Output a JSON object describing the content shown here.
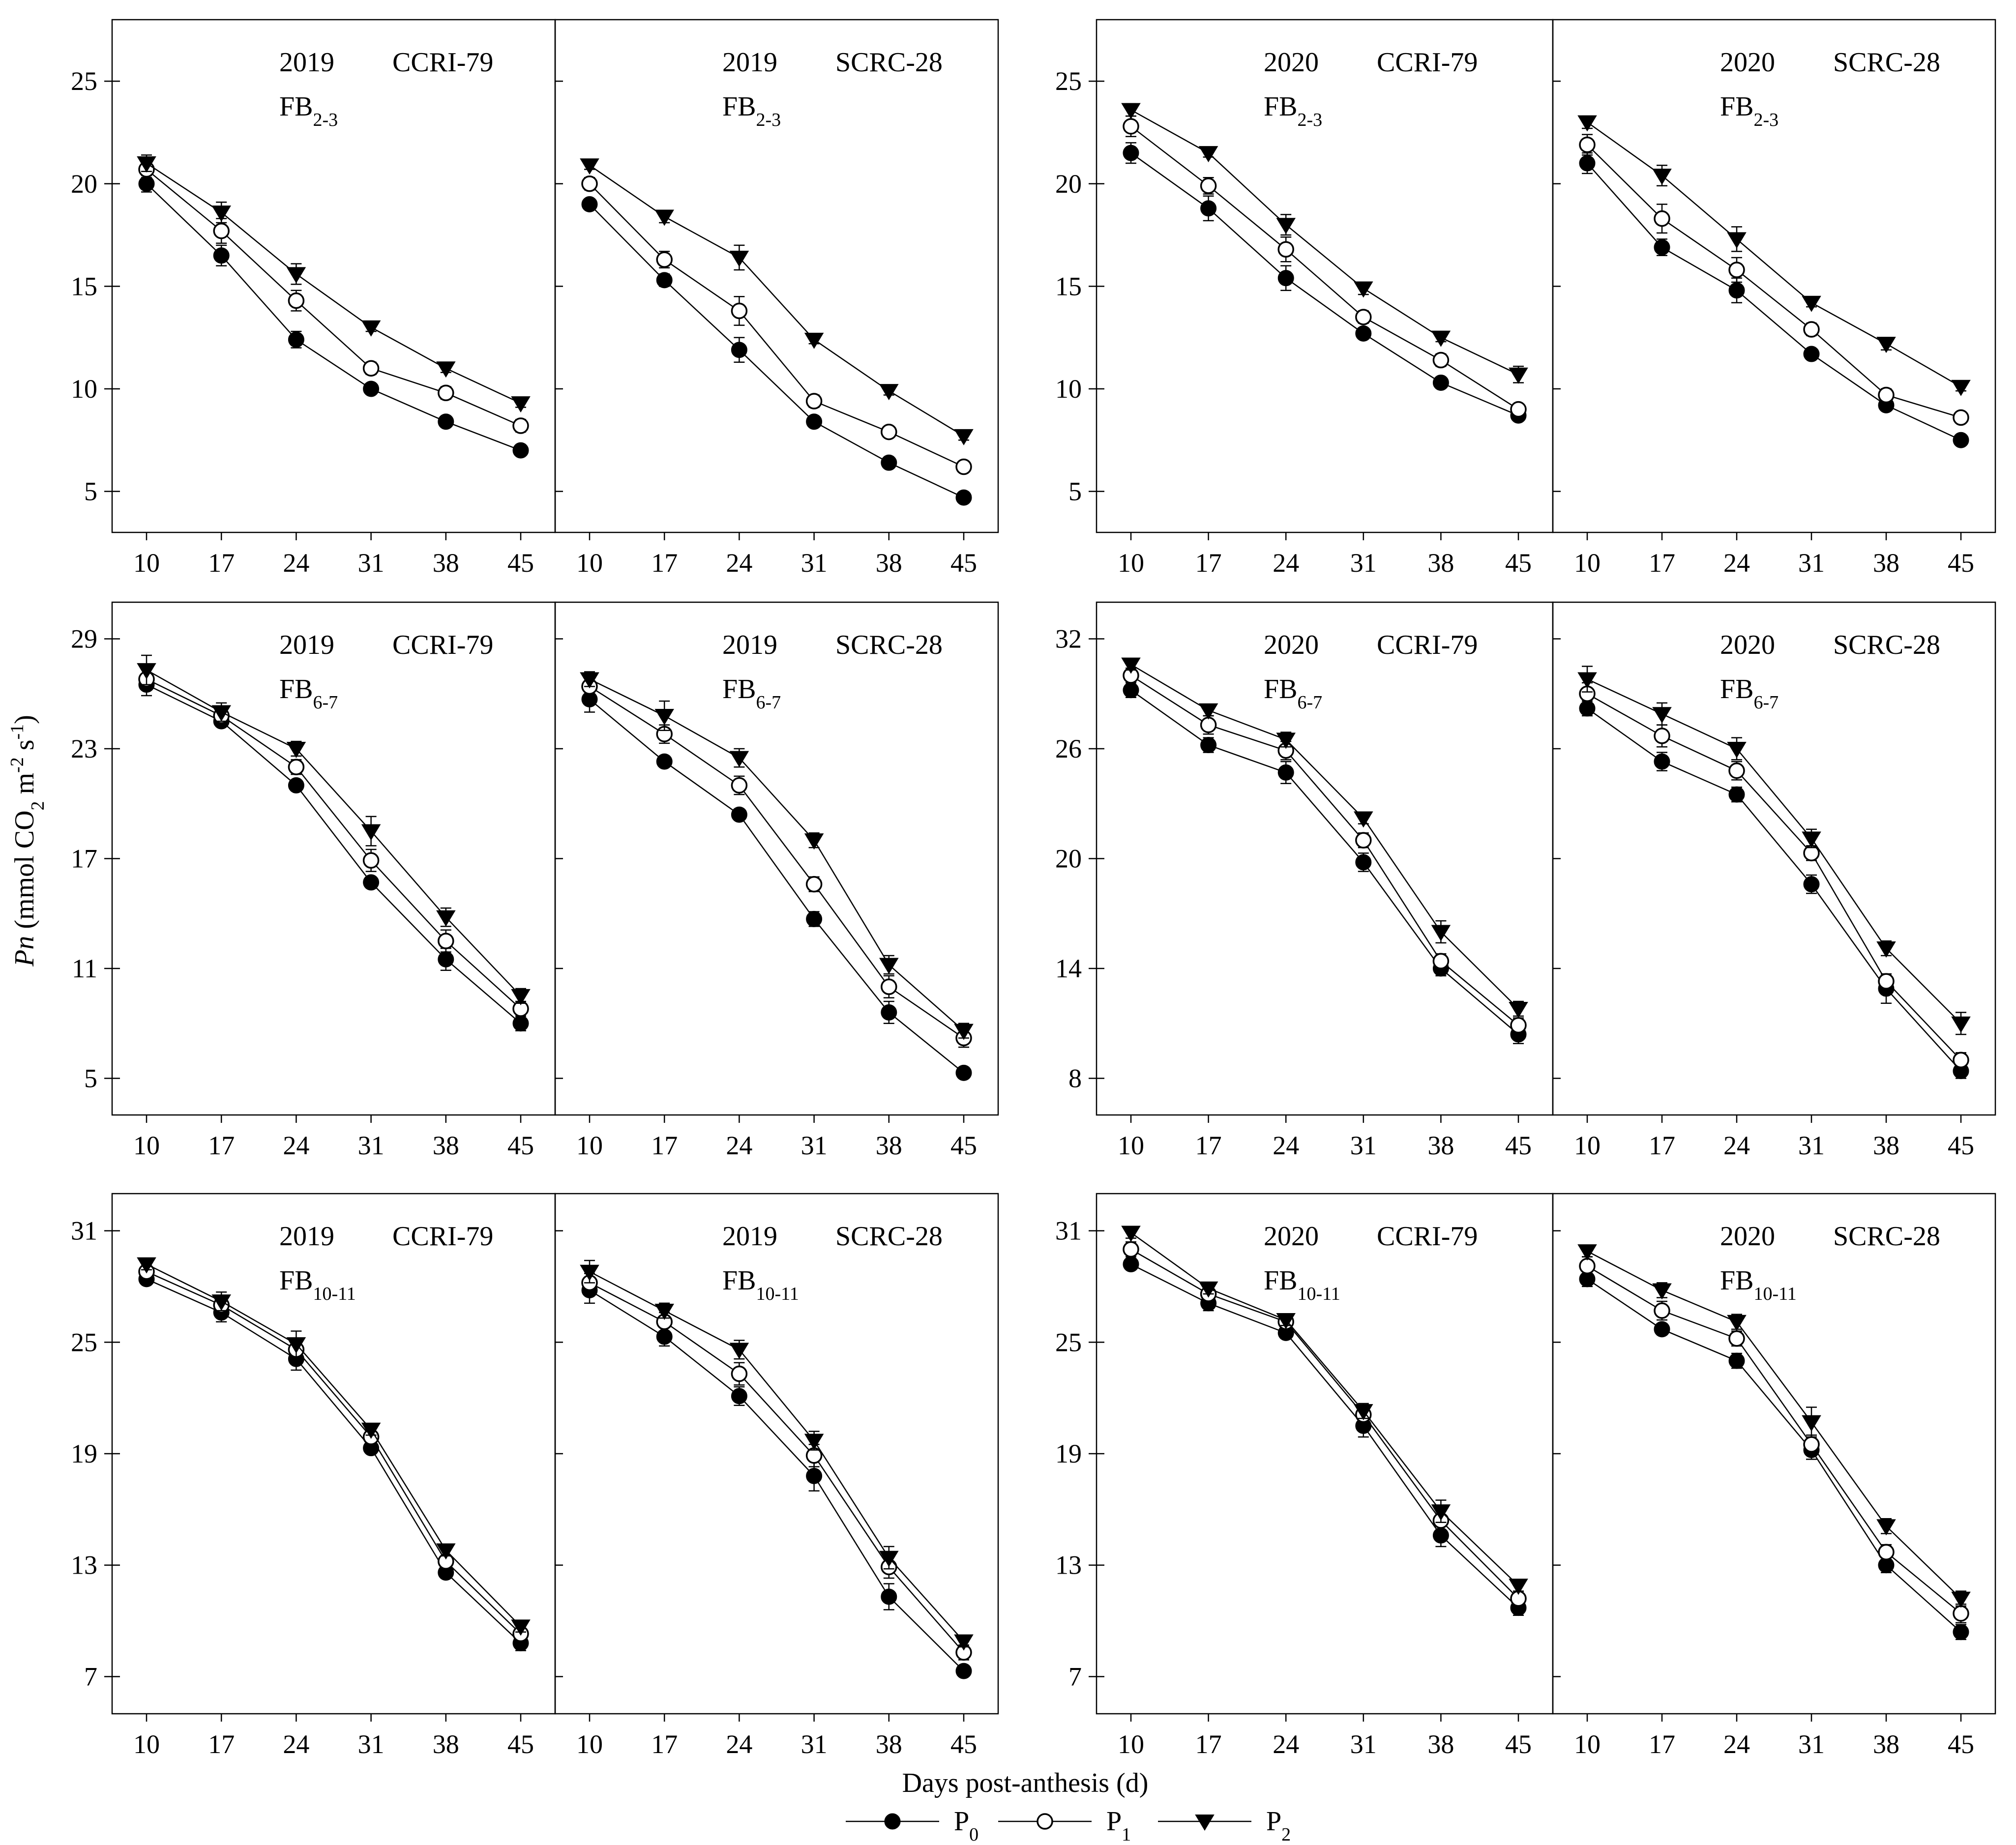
{
  "figure": {
    "x_axis_title": "Days post-anthesis (d)",
    "y_axis_title": {
      "italic": "Pn",
      "parts": [
        {
          "text": " (mmol CO",
          "shift": "none"
        },
        {
          "text": "2",
          "shift": "sub"
        },
        {
          "text": " m",
          "shift": "none"
        },
        {
          "text": "-2",
          "shift": "super"
        },
        {
          "text": " s",
          "shift": "none"
        },
        {
          "text": "-1",
          "shift": "super"
        },
        {
          "text": ")",
          "shift": "none"
        }
      ]
    },
    "legend": [
      {
        "label": "P",
        "subscript": "0",
        "marker": "filled-circle"
      },
      {
        "label": "P",
        "subscript": "1",
        "marker": "open-circle"
      },
      {
        "label": "P",
        "subscript": "2",
        "marker": "filled-triangle-down"
      }
    ]
  },
  "chart_data": [
    {
      "type": "line",
      "year": "2019",
      "cultivar": "CCRI-79",
      "fb": "FB",
      "fb_sub": "2-3",
      "x": [
        10,
        17,
        24,
        31,
        38,
        45
      ],
      "ylim": [
        3,
        28
      ],
      "yticks": [
        5,
        10,
        15,
        20,
        25
      ],
      "series": [
        {
          "name": "P0",
          "values": [
            20.0,
            16.5,
            12.4,
            10.0,
            8.4,
            7.0
          ],
          "err": [
            0.4,
            0.5,
            0.4,
            0.2,
            0.2,
            0.2
          ]
        },
        {
          "name": "P1",
          "values": [
            20.7,
            17.7,
            14.3,
            11.0,
            9.8,
            8.2
          ],
          "err": [
            0.4,
            0.6,
            0.5,
            0.3,
            0.3,
            0.3
          ]
        },
        {
          "name": "P2",
          "values": [
            21.0,
            18.6,
            15.6,
            13.0,
            11.0,
            9.3
          ],
          "err": [
            0.4,
            0.5,
            0.5,
            0.2,
            0.2,
            0.2
          ]
        }
      ]
    },
    {
      "type": "line",
      "year": "2019",
      "cultivar": "SCRC-28",
      "fb": "FB",
      "fb_sub": "2-3",
      "x": [
        10,
        17,
        24,
        31,
        38,
        45
      ],
      "ylim": [
        3,
        28
      ],
      "yticks": [
        5,
        10,
        15,
        20,
        25
      ],
      "series": [
        {
          "name": "P0",
          "values": [
            19.0,
            15.3,
            11.9,
            8.4,
            6.4,
            4.7
          ],
          "err": [
            0.2,
            0.3,
            0.6,
            0.2,
            0.2,
            0.2
          ]
        },
        {
          "name": "P1",
          "values": [
            20.0,
            16.3,
            13.8,
            9.4,
            7.9,
            6.2
          ],
          "err": [
            0.3,
            0.4,
            0.7,
            0.3,
            0.2,
            0.2
          ]
        },
        {
          "name": "P2",
          "values": [
            20.9,
            18.4,
            16.4,
            12.4,
            9.9,
            7.7
          ],
          "err": [
            0.2,
            0.3,
            0.6,
            0.2,
            0.2,
            0.2
          ]
        }
      ]
    },
    {
      "type": "line",
      "year": "2020",
      "cultivar": "CCRI-79",
      "fb": "FB",
      "fb_sub": "2-3",
      "x": [
        10,
        17,
        24,
        31,
        38,
        45
      ],
      "ylim": [
        3,
        28
      ],
      "yticks": [
        5,
        10,
        15,
        20,
        25
      ],
      "series": [
        {
          "name": "P0",
          "values": [
            21.5,
            18.8,
            15.4,
            12.7,
            10.3,
            8.7
          ],
          "err": [
            0.5,
            0.6,
            0.6,
            0.2,
            0.2,
            0.2
          ]
        },
        {
          "name": "P1",
          "values": [
            22.8,
            19.9,
            16.8,
            13.5,
            11.4,
            9.0
          ],
          "err": [
            0.5,
            0.4,
            0.6,
            0.3,
            0.3,
            0.2
          ]
        },
        {
          "name": "P2",
          "values": [
            23.6,
            21.5,
            18.0,
            14.9,
            12.5,
            10.7
          ],
          "err": [
            0.3,
            0.2,
            0.5,
            0.3,
            0.2,
            0.4
          ]
        }
      ]
    },
    {
      "type": "line",
      "year": "2020",
      "cultivar": "SCRC-28",
      "fb": "FB",
      "fb_sub": "2-3",
      "x": [
        10,
        17,
        24,
        31,
        38,
        45
      ],
      "ylim": [
        3,
        28
      ],
      "yticks": [
        5,
        10,
        15,
        20,
        25
      ],
      "series": [
        {
          "name": "P0",
          "values": [
            21.0,
            16.9,
            14.8,
            11.7,
            9.2,
            7.5
          ],
          "err": [
            0.5,
            0.4,
            0.6,
            0.2,
            0.2,
            0.2
          ]
        },
        {
          "name": "P1",
          "values": [
            21.9,
            18.3,
            15.8,
            12.9,
            9.7,
            8.6
          ],
          "err": [
            0.5,
            0.7,
            0.6,
            0.3,
            0.3,
            0.2
          ]
        },
        {
          "name": "P2",
          "values": [
            23.0,
            20.4,
            17.3,
            14.2,
            12.2,
            10.1
          ],
          "err": [
            0.3,
            0.5,
            0.6,
            0.2,
            0.3,
            0.2
          ]
        }
      ]
    },
    {
      "type": "line",
      "year": "2019",
      "cultivar": "CCRI-79",
      "fb": "FB",
      "fb_sub": "6-7",
      "x": [
        10,
        17,
        24,
        31,
        38,
        45
      ],
      "ylim": [
        3,
        31
      ],
      "yticks": [
        5,
        11,
        17,
        23,
        29
      ],
      "series": [
        {
          "name": "P0",
          "values": [
            26.5,
            24.5,
            21.0,
            15.7,
            11.5,
            8.0
          ],
          "err": [
            0.6,
            0.3,
            0.3,
            0.3,
            0.6,
            0.4
          ]
        },
        {
          "name": "P1",
          "values": [
            26.8,
            24.8,
            22.0,
            16.9,
            12.5,
            8.8
          ],
          "err": [
            0.6,
            0.4,
            0.4,
            0.6,
            0.6,
            0.4
          ]
        },
        {
          "name": "P2",
          "values": [
            27.3,
            25.0,
            23.0,
            18.5,
            13.8,
            9.5
          ],
          "err": [
            0.8,
            0.5,
            0.4,
            0.8,
            0.5,
            0.4
          ]
        }
      ]
    },
    {
      "type": "line",
      "year": "2019",
      "cultivar": "SCRC-28",
      "fb": "FB",
      "fb_sub": "6-7",
      "x": [
        10,
        17,
        24,
        31,
        38,
        45
      ],
      "ylim": [
        3,
        31
      ],
      "yticks": [
        5,
        11,
        17,
        23,
        29
      ],
      "series": [
        {
          "name": "P0",
          "values": [
            25.7,
            22.3,
            19.4,
            13.7,
            8.6,
            5.3
          ],
          "err": [
            0.7,
            0.3,
            0.3,
            0.4,
            0.6,
            0.3
          ]
        },
        {
          "name": "P1",
          "values": [
            26.4,
            23.8,
            21.0,
            15.6,
            10.0,
            7.2
          ],
          "err": [
            0.5,
            0.5,
            0.5,
            0.4,
            0.6,
            0.5
          ]
        },
        {
          "name": "P2",
          "values": [
            26.8,
            24.8,
            22.5,
            18.0,
            11.2,
            7.6
          ],
          "err": [
            0.4,
            0.8,
            0.5,
            0.4,
            0.5,
            0.4
          ]
        }
      ]
    },
    {
      "type": "line",
      "year": "2020",
      "cultivar": "CCRI-79",
      "fb": "FB",
      "fb_sub": "6-7",
      "x": [
        10,
        17,
        24,
        31,
        38,
        45
      ],
      "ylim": [
        6,
        34
      ],
      "yticks": [
        8,
        14,
        20,
        26,
        32
      ],
      "series": [
        {
          "name": "P0",
          "values": [
            29.2,
            26.2,
            24.7,
            19.8,
            14.0,
            10.4
          ],
          "err": [
            0.4,
            0.4,
            0.6,
            0.5,
            0.4,
            0.5
          ]
        },
        {
          "name": "P1",
          "values": [
            30.0,
            27.3,
            25.9,
            21.0,
            14.4,
            10.9
          ],
          "err": [
            0.4,
            0.5,
            0.5,
            0.4,
            0.4,
            0.4
          ]
        },
        {
          "name": "P2",
          "values": [
            30.6,
            28.1,
            26.5,
            22.2,
            16.0,
            11.8
          ],
          "err": [
            0.3,
            0.3,
            0.4,
            0.3,
            0.6,
            0.4
          ]
        }
      ]
    },
    {
      "type": "line",
      "year": "2020",
      "cultivar": "SCRC-28",
      "fb": "FB",
      "fb_sub": "6-7",
      "x": [
        10,
        17,
        24,
        31,
        38,
        45
      ],
      "ylim": [
        6,
        34
      ],
      "yticks": [
        8,
        14,
        20,
        26,
        32
      ],
      "series": [
        {
          "name": "P0",
          "values": [
            28.2,
            25.3,
            23.5,
            18.6,
            12.9,
            8.4
          ],
          "err": [
            0.4,
            0.5,
            0.4,
            0.5,
            0.8,
            0.4
          ]
        },
        {
          "name": "P1",
          "values": [
            29.0,
            26.7,
            24.8,
            20.3,
            13.3,
            9.0
          ],
          "err": [
            0.6,
            0.6,
            0.5,
            0.4,
            0.4,
            0.4
          ]
        },
        {
          "name": "P2",
          "values": [
            29.8,
            27.9,
            26.0,
            21.1,
            15.1,
            11.0
          ],
          "err": [
            0.7,
            0.6,
            0.6,
            0.5,
            0.4,
            0.6
          ]
        }
      ]
    },
    {
      "type": "line",
      "year": "2019",
      "cultivar": "CCRI-79",
      "fb": "FB",
      "fb_sub": "10-11",
      "x": [
        10,
        17,
        24,
        31,
        38,
        45
      ],
      "ylim": [
        5,
        33
      ],
      "yticks": [
        7,
        13,
        19,
        25,
        31
      ],
      "series": [
        {
          "name": "P0",
          "values": [
            28.4,
            26.6,
            24.1,
            19.3,
            12.6,
            8.8
          ],
          "err": [
            0.3,
            0.5,
            0.6,
            0.2,
            0.3,
            0.4
          ]
        },
        {
          "name": "P1",
          "values": [
            28.8,
            27.0,
            24.6,
            19.9,
            13.2,
            9.3
          ],
          "err": [
            0.4,
            0.5,
            0.6,
            0.3,
            0.3,
            0.3
          ]
        },
        {
          "name": "P2",
          "values": [
            29.2,
            27.2,
            24.9,
            20.3,
            13.8,
            9.7
          ],
          "err": [
            0.3,
            0.5,
            0.7,
            0.3,
            0.3,
            0.3
          ]
        }
      ]
    },
    {
      "type": "line",
      "year": "2019",
      "cultivar": "SCRC-28",
      "fb": "FB",
      "fb_sub": "10-11",
      "x": [
        10,
        17,
        24,
        31,
        38,
        45
      ],
      "ylim": [
        5,
        33
      ],
      "yticks": [
        7,
        13,
        19,
        25,
        31
      ],
      "series": [
        {
          "name": "P0",
          "values": [
            27.8,
            25.3,
            22.1,
            17.8,
            11.3,
            7.3
          ],
          "err": [
            0.7,
            0.5,
            0.5,
            0.8,
            0.7,
            0.3
          ]
        },
        {
          "name": "P1",
          "values": [
            28.2,
            26.1,
            23.3,
            18.9,
            12.9,
            8.3
          ],
          "err": [
            0.5,
            0.5,
            0.6,
            0.6,
            0.6,
            0.4
          ]
        },
        {
          "name": "P2",
          "values": [
            28.8,
            26.7,
            24.6,
            19.7,
            13.4,
            8.9
          ],
          "err": [
            0.6,
            0.4,
            0.5,
            0.5,
            0.6,
            0.3
          ]
        }
      ]
    },
    {
      "type": "line",
      "year": "2020",
      "cultivar": "CCRI-79",
      "fb": "FB",
      "fb_sub": "10-11",
      "x": [
        10,
        17,
        24,
        31,
        38,
        45
      ],
      "ylim": [
        5,
        33
      ],
      "yticks": [
        7,
        13,
        19,
        25,
        31
      ],
      "series": [
        {
          "name": "P0",
          "values": [
            29.2,
            27.1,
            25.5,
            20.5,
            14.6,
            10.7
          ],
          "err": [
            0.3,
            0.4,
            0.3,
            0.6,
            0.6,
            0.4
          ]
        },
        {
          "name": "P1",
          "values": [
            30.0,
            27.6,
            26.1,
            21.1,
            15.4,
            11.2
          ],
          "err": [
            0.4,
            0.3,
            0.3,
            0.4,
            0.5,
            0.4
          ]
        },
        {
          "name": "P2",
          "values": [
            30.9,
            27.9,
            26.2,
            21.3,
            15.9,
            11.9
          ],
          "err": [
            0.3,
            0.3,
            0.3,
            0.4,
            0.6,
            0.3
          ]
        }
      ]
    },
    {
      "type": "line",
      "year": "2020",
      "cultivar": "SCRC-28",
      "fb": "FB",
      "fb_sub": "10-11",
      "x": [
        10,
        17,
        24,
        31,
        38,
        45
      ],
      "ylim": [
        5,
        33
      ],
      "yticks": [
        7,
        13,
        19,
        25,
        31
      ],
      "series": [
        {
          "name": "P0",
          "values": [
            28.4,
            25.7,
            24.0,
            19.2,
            13.0,
            9.4
          ],
          "err": [
            0.4,
            0.3,
            0.4,
            0.5,
            0.4,
            0.4
          ]
        },
        {
          "name": "P1",
          "values": [
            29.1,
            26.7,
            25.2,
            19.5,
            13.7,
            10.4
          ],
          "err": [
            0.5,
            0.5,
            0.4,
            0.5,
            0.4,
            0.5
          ]
        },
        {
          "name": "P2",
          "values": [
            29.9,
            27.8,
            26.1,
            20.7,
            15.1,
            11.2
          ],
          "err": [
            0.3,
            0.4,
            0.4,
            0.8,
            0.4,
            0.4
          ]
        }
      ]
    }
  ]
}
